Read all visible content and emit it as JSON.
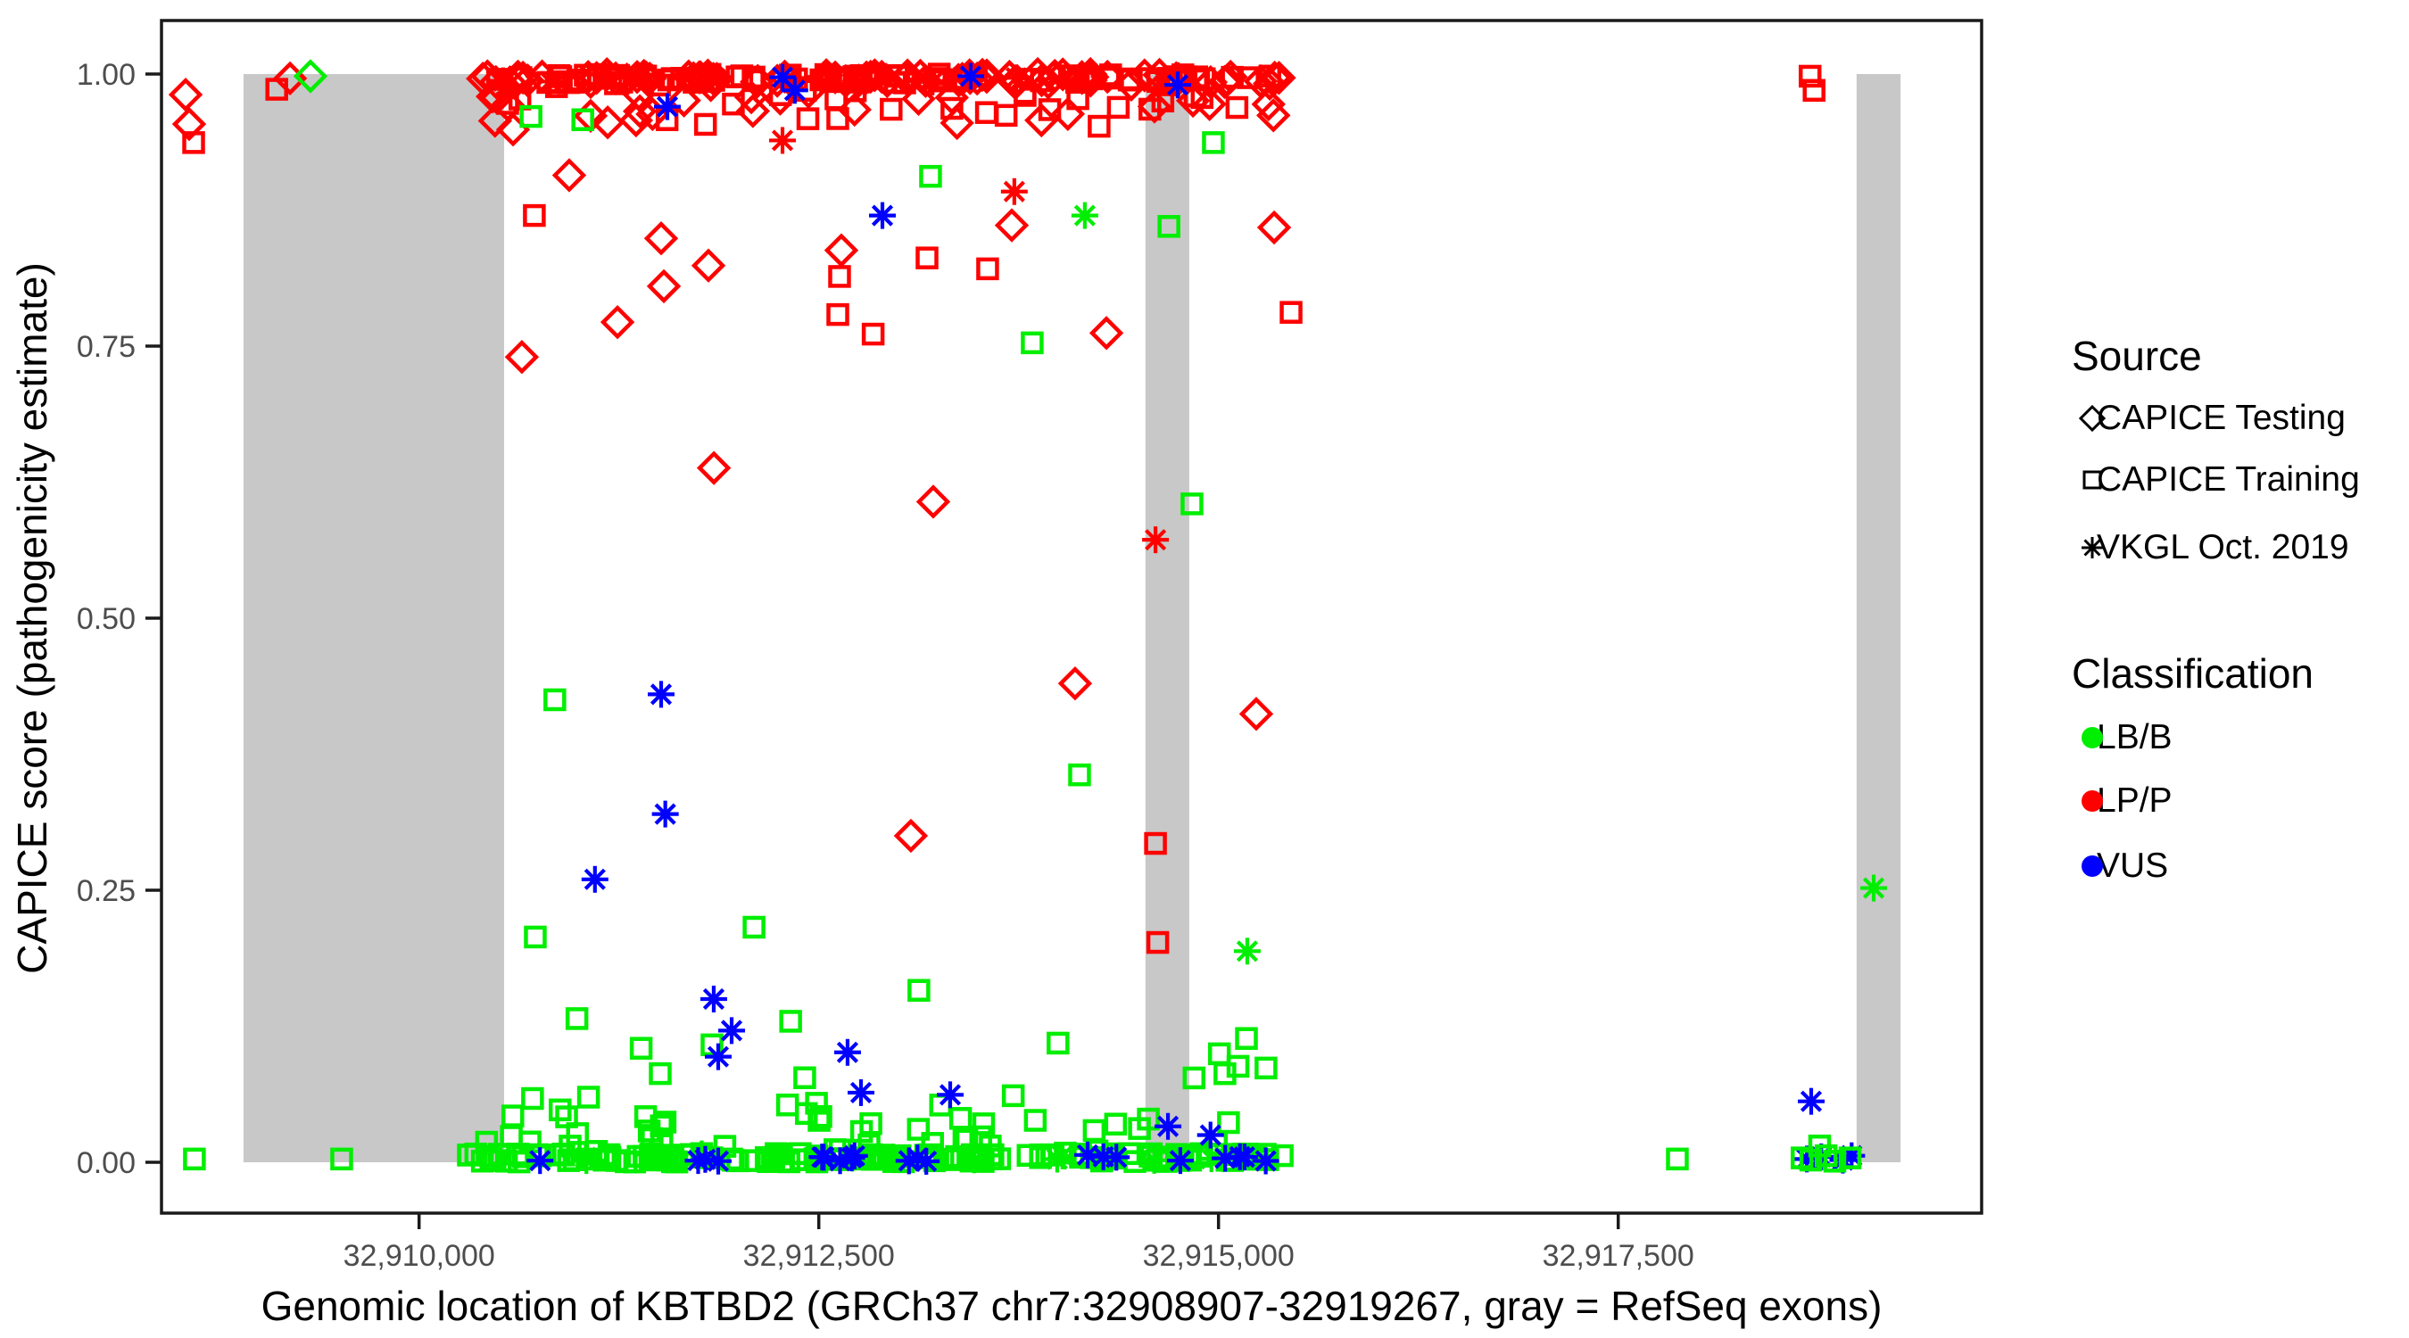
{
  "figure": {
    "x_axis": {
      "title": "Genomic location of KBTBD2 (GRCh37 chr7:32908907-32919267, gray = RefSeq exons)",
      "ticks": [
        {
          "value": 32910000,
          "label": "32,910,000"
        },
        {
          "value": 32912500,
          "label": "32,912,500"
        },
        {
          "value": 32915000,
          "label": "32,915,000"
        },
        {
          "value": 32917500,
          "label": "32,917,500"
        }
      ]
    },
    "y_axis": {
      "title": "CAPICE score (pathogenicity estimate)",
      "ticks": [
        {
          "value": 0.0,
          "label": "0.00"
        },
        {
          "value": 0.25,
          "label": "0.25"
        },
        {
          "value": 0.5,
          "label": "0.50"
        },
        {
          "value": 0.75,
          "label": "0.75"
        },
        {
          "value": 1.0,
          "label": "1.00"
        }
      ]
    },
    "legend": {
      "source": {
        "title": "Source",
        "items": [
          {
            "label": "CAPICE Testing",
            "marker": "diamond"
          },
          {
            "label": "CAPICE Training",
            "marker": "square"
          },
          {
            "label": "VKGL Oct. 2019",
            "marker": "asterisk"
          }
        ]
      },
      "classification": {
        "title": "Classification",
        "items": [
          {
            "label": "LB/B",
            "color": "#00EE00"
          },
          {
            "label": "LP/P",
            "color": "#FF0000"
          },
          {
            "label": "VUS",
            "color": "#0000FF"
          }
        ]
      }
    },
    "colors": {
      "LB/B": "#00EE00",
      "LP/P": "#FF0000",
      "VUS": "#0000FF",
      "exon_gray": "#C8C8C8"
    }
  },
  "chart_data": {
    "type": "scatter",
    "title": "",
    "xlabel": "Genomic location of KBTBD2 (GRCh37 chr7:32908907-32919267, gray = RefSeq exons)",
    "ylabel": "CAPICE score (pathogenicity estimate)",
    "xlim": [
      32908389,
      32919785
    ],
    "ylim": [
      -0.05,
      1.05
    ],
    "grid": false,
    "legend_position": "right",
    "marker_encoding": {
      "T": "CAPICE Testing (diamond)",
      "R": "CAPICE Training (square)",
      "V": "VKGL Oct. 2019 (asterisk)"
    },
    "class_encoding": {
      "B": "LB/B (green)",
      "P": "LP/P (red)",
      "U": "VUS (blue)"
    },
    "exons_gray": [
      [
        32908902,
        32910532
      ],
      [
        32914543,
        32914817
      ],
      [
        32918991,
        32919266
      ]
    ],
    "points": [
      [
        32908540,
        0.981,
        "T",
        "P"
      ],
      [
        32908562,
        0.954,
        "T",
        "P"
      ],
      [
        32908590,
        0.937,
        "R",
        "P"
      ],
      [
        32909193,
        0.996,
        "T",
        "P"
      ],
      [
        32909110,
        0.986,
        "R",
        "P"
      ],
      [
        32910588,
        0.949,
        "T",
        "P"
      ],
      [
        32910721,
        0.87,
        "R",
        "P"
      ],
      [
        32910939,
        0.907,
        "T",
        "P"
      ],
      [
        32910643,
        0.74,
        "T",
        "P"
      ],
      [
        32911241,
        0.772,
        "T",
        "P"
      ],
      [
        32911514,
        0.849,
        "T",
        "P"
      ],
      [
        32911531,
        0.805,
        "T",
        "P"
      ],
      [
        32911810,
        0.824,
        "T",
        "P"
      ],
      [
        32911844,
        0.638,
        "T",
        "P"
      ],
      [
        32913216,
        0.607,
        "T",
        "P"
      ],
      [
        32912641,
        0.838,
        "T",
        "P"
      ],
      [
        32912630,
        0.814,
        "R",
        "P"
      ],
      [
        32912619,
        0.779,
        "R",
        "P"
      ],
      [
        32912273,
        0.939,
        "V",
        "P"
      ],
      [
        32913723,
        0.892,
        "V",
        "P"
      ],
      [
        32913177,
        0.831,
        "R",
        "P"
      ],
      [
        32913556,
        0.821,
        "R",
        "P"
      ],
      [
        32913707,
        0.861,
        "T",
        "P"
      ],
      [
        32913076,
        0.3,
        "T",
        "P"
      ],
      [
        32914606,
        0.572,
        "V",
        "P"
      ],
      [
        32914606,
        0.293,
        "R",
        "P"
      ],
      [
        32914620,
        0.202,
        "R",
        "P"
      ],
      [
        32914103,
        0.44,
        "T",
        "P"
      ],
      [
        32915236,
        0.412,
        "T",
        "P"
      ],
      [
        32914299,
        0.762,
        "T",
        "P"
      ],
      [
        32915348,
        0.859,
        "T",
        "P"
      ],
      [
        32915454,
        0.781,
        "R",
        "P"
      ],
      [
        32912840,
        0.761,
        "R",
        "P"
      ],
      [
        32918700,
        0.998,
        "R",
        "P"
      ],
      [
        32918725,
        0.985,
        "R",
        "P"
      ],
      [
        32911514,
        0.43,
        "V",
        "U"
      ],
      [
        32911540,
        0.32,
        "V",
        "U"
      ],
      [
        32911100,
        0.26,
        "V",
        "U"
      ],
      [
        32912898,
        0.87,
        "V",
        "U"
      ],
      [
        32911553,
        0.97,
        "V",
        "U"
      ],
      [
        32912273,
        0.997,
        "V",
        "U"
      ],
      [
        32913450,
        0.998,
        "V",
        "U"
      ],
      [
        32914745,
        0.99,
        "V",
        "U"
      ],
      [
        32912350,
        0.985,
        "V",
        "U"
      ],
      [
        32911843,
        0.15,
        "V",
        "U"
      ],
      [
        32911955,
        0.121,
        "V",
        "U"
      ],
      [
        32911871,
        0.097,
        "V",
        "U"
      ],
      [
        32912680,
        0.101,
        "V",
        "U"
      ],
      [
        32912764,
        0.064,
        "V",
        "U"
      ],
      [
        32913322,
        0.062,
        "V",
        "U"
      ],
      [
        32914684,
        0.033,
        "V",
        "U"
      ],
      [
        32914950,
        0.025,
        "V",
        "U"
      ],
      [
        32918707,
        0.056,
        "V",
        "U"
      ],
      [
        32918680,
        0.003,
        "V",
        "U"
      ],
      [
        32918770,
        0.005,
        "V",
        "U"
      ],
      [
        32918905,
        0.002,
        "V",
        "U"
      ],
      [
        32918960,
        0.006,
        "V",
        "U"
      ],
      [
        32909321,
        0.998,
        "T",
        "B"
      ],
      [
        32910700,
        0.961,
        "R",
        "B"
      ],
      [
        32911024,
        0.958,
        "R",
        "B"
      ],
      [
        32913199,
        0.906,
        "R",
        "B"
      ],
      [
        32914164,
        0.87,
        "V",
        "B"
      ],
      [
        32913835,
        0.753,
        "R",
        "B"
      ],
      [
        32914690,
        0.86,
        "R",
        "B"
      ],
      [
        32914968,
        0.937,
        "R",
        "B"
      ],
      [
        32914834,
        0.605,
        "R",
        "B"
      ],
      [
        32910849,
        0.425,
        "R",
        "B"
      ],
      [
        32910727,
        0.207,
        "R",
        "B"
      ],
      [
        32915180,
        0.194,
        "V",
        "B"
      ],
      [
        32914131,
        0.356,
        "R",
        "B"
      ],
      [
        32913126,
        0.158,
        "R",
        "B"
      ],
      [
        32912095,
        0.216,
        "R",
        "B"
      ],
      [
        32908595,
        0.003,
        "R",
        "B"
      ],
      [
        32909516,
        0.003,
        "R",
        "B"
      ],
      [
        32917870,
        0.003,
        "R",
        "B"
      ],
      [
        32919098,
        0.252,
        "V",
        "B"
      ],
      [
        32918760,
        0.015,
        "R",
        "B"
      ],
      [
        32918650,
        0.004,
        "R",
        "B"
      ],
      [
        32918705,
        0.002,
        "R",
        "B"
      ],
      [
        32918800,
        0.006,
        "R",
        "B"
      ],
      [
        32918855,
        0.001,
        "R",
        "B"
      ],
      [
        32918950,
        0.004,
        "R",
        "B"
      ]
    ],
    "dense_bands": [
      {
        "desc": "top LP/P strip at score ~1.0",
        "n": 170,
        "x": [
          32910380,
          32915400
        ],
        "y": [
          0.992,
          1.0
        ],
        "cls": "P",
        "src": {
          "R": 0.5,
          "T": 0.45,
          "V": 0.05
        }
      },
      {
        "desc": "upper LP/P scatter 0.95-0.99",
        "n": 60,
        "x": [
          32910380,
          32915400
        ],
        "y": [
          0.952,
          0.992
        ],
        "cls": "P",
        "src": {
          "R": 0.6,
          "T": 0.4
        }
      },
      {
        "desc": "bottom LB/B strip at score ~0",
        "n": 160,
        "x": [
          32910300,
          32915400
        ],
        "y": [
          0.0,
          0.008
        ],
        "cls": "B",
        "src": {
          "R": 0.92,
          "V": 0.08
        }
      },
      {
        "desc": "low LB/B scatter 0.01-0.045",
        "n": 40,
        "x": [
          32910300,
          32915400
        ],
        "y": [
          0.008,
          0.045
        ],
        "cls": "B",
        "src": {
          "R": 1.0
        }
      },
      {
        "desc": "mid-low LB/B scatter 0.045-0.135",
        "n": 20,
        "x": [
          32910500,
          32915300
        ],
        "y": [
          0.045,
          0.135
        ],
        "cls": "B",
        "src": {
          "R": 1.0
        }
      },
      {
        "desc": "bottom VUS asterisks at ~0",
        "n": 20,
        "x": [
          32910400,
          32915350
        ],
        "y": [
          0.0,
          0.009
        ],
        "cls": "U",
        "src": {
          "V": 1.0
        }
      }
    ]
  }
}
